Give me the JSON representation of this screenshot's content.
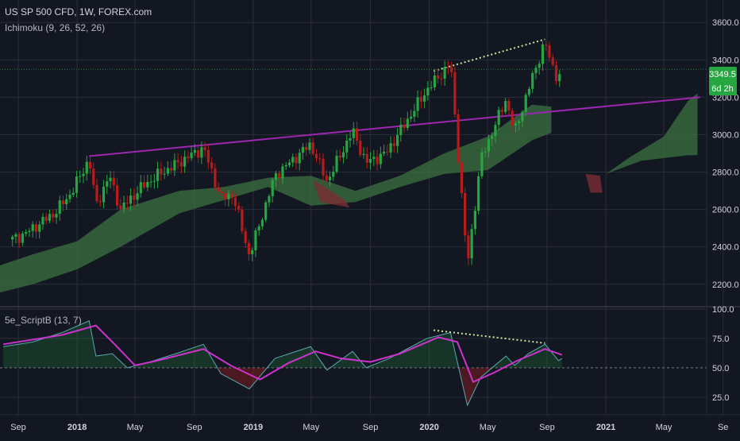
{
  "header": {
    "symbol_title": "US SP 500 CFD, 1W, FOREX.com",
    "indicator_label": "Ichimoku (9, 26, 52, 26)"
  },
  "price_badge": {
    "value": "3349.5",
    "countdown": "6d 2h"
  },
  "oscillator": {
    "label": "5e_ScriptB (13, 7)"
  },
  "colors": {
    "background": "#131722",
    "grid": "#2a2e39",
    "up": "#26a641",
    "down": "#b71c1c",
    "cloud_bull": "#3a6b3f",
    "cloud_bear": "#7a2c35",
    "trendline": "#9c27b0",
    "oscillator_line": "#5aa8b0",
    "signal_line": "#cc33cc",
    "divergence": "#c8e6a0",
    "badge_green": "#26a641"
  },
  "x_axis": {
    "ticks": [
      {
        "label": "Sep",
        "date": "2017-09-01"
      },
      {
        "label": "2018",
        "date": "2018-01-01"
      },
      {
        "label": "May",
        "date": "2018-05-01"
      },
      {
        "label": "Sep",
        "date": "2018-09-01"
      },
      {
        "label": "2019",
        "date": "2019-01-01"
      },
      {
        "label": "May",
        "date": "2019-05-01"
      },
      {
        "label": "Sep",
        "date": "2019-09-01"
      },
      {
        "label": "2020",
        "date": "2020-01-01"
      },
      {
        "label": "May",
        "date": "2020-05-01"
      },
      {
        "label": "Sep",
        "date": "2020-09-01"
      },
      {
        "label": "2021",
        "date": "2021-01-01"
      },
      {
        "label": "May",
        "date": "2021-05-01"
      },
      {
        "label": "Se",
        "date": "2021-09-01"
      }
    ]
  },
  "chart_data": [
    {
      "type": "candlestick",
      "title": "US SP 500 CFD, 1W, FOREX.com",
      "ylim": [
        2080,
        3720
      ],
      "y_ticks": [
        2200,
        2400,
        2600,
        2800,
        3000,
        3200,
        3400,
        3600
      ],
      "last_price": 3349.5,
      "price_path": [
        {
          "date": "2017-08-20",
          "price": 2440
        },
        {
          "date": "2017-09-15",
          "price": 2470
        },
        {
          "date": "2017-11-15",
          "price": 2580
        },
        {
          "date": "2017-12-20",
          "price": 2690
        },
        {
          "date": "2018-01-26",
          "price": 2870
        },
        {
          "date": "2018-02-09",
          "price": 2620
        },
        {
          "date": "2018-03-09",
          "price": 2780
        },
        {
          "date": "2018-04-01",
          "price": 2600
        },
        {
          "date": "2018-05-15",
          "price": 2720
        },
        {
          "date": "2018-06-15",
          "price": 2780
        },
        {
          "date": "2018-09-20",
          "price": 2930
        },
        {
          "date": "2018-10-26",
          "price": 2660
        },
        {
          "date": "2018-11-20",
          "price": 2680
        },
        {
          "date": "2018-12-24",
          "price": 2350
        },
        {
          "date": "2019-02-15",
          "price": 2780
        },
        {
          "date": "2019-04-30",
          "price": 2950
        },
        {
          "date": "2019-06-03",
          "price": 2750
        },
        {
          "date": "2019-07-26",
          "price": 3020
        },
        {
          "date": "2019-08-23",
          "price": 2850
        },
        {
          "date": "2019-10-03",
          "price": 2900
        },
        {
          "date": "2019-12-27",
          "price": 3240
        },
        {
          "date": "2020-02-14",
          "price": 3380
        },
        {
          "date": "2020-03-20",
          "price": 2300
        },
        {
          "date": "2020-04-17",
          "price": 2870
        },
        {
          "date": "2020-06-08",
          "price": 3190
        },
        {
          "date": "2020-06-26",
          "price": 3010
        },
        {
          "date": "2020-07-24",
          "price": 3240
        },
        {
          "date": "2020-08-28",
          "price": 3500
        },
        {
          "date": "2020-09-04",
          "price": 3420
        },
        {
          "date": "2020-09-25",
          "price": 3290
        },
        {
          "date": "2020-10-02",
          "price": 3349.5
        }
      ],
      "trendline": {
        "from": {
          "date": "2018-01-26",
          "price": 2885
        },
        "to": {
          "date": "2021-07-15",
          "price": 3200
        }
      },
      "divergence_line": {
        "from": {
          "date": "2020-01-10",
          "price": 3340
        },
        "to": {
          "date": "2020-08-28",
          "price": 3510
        }
      },
      "cloud_upper": [
        {
          "date": "2017-07-01",
          "price": 2280
        },
        {
          "date": "2017-10-01",
          "price": 2360
        },
        {
          "date": "2018-01-01",
          "price": 2430
        },
        {
          "date": "2018-04-01",
          "price": 2600
        },
        {
          "date": "2018-08-01",
          "price": 2700
        },
        {
          "date": "2018-11-01",
          "price": 2720
        },
        {
          "date": "2019-02-01",
          "price": 2770
        },
        {
          "date": "2019-05-01",
          "price": 2780
        },
        {
          "date": "2019-08-01",
          "price": 2700
        },
        {
          "date": "2019-11-01",
          "price": 2780
        },
        {
          "date": "2020-02-01",
          "price": 2900
        },
        {
          "date": "2020-05-01",
          "price": 2990
        },
        {
          "date": "2020-08-01",
          "price": 3160
        },
        {
          "date": "2020-09-10",
          "price": 3150
        }
      ],
      "cloud_lower": [
        {
          "date": "2017-07-01",
          "price": 2140
        },
        {
          "date": "2017-10-01",
          "price": 2200
        },
        {
          "date": "2018-01-01",
          "price": 2280
        },
        {
          "date": "2018-04-01",
          "price": 2400
        },
        {
          "date": "2018-08-01",
          "price": 2580
        },
        {
          "date": "2018-11-01",
          "price": 2650
        },
        {
          "date": "2019-02-01",
          "price": 2720
        },
        {
          "date": "2019-05-01",
          "price": 2620
        },
        {
          "date": "2019-08-01",
          "price": 2640
        },
        {
          "date": "2019-11-01",
          "price": 2720
        },
        {
          "date": "2020-02-01",
          "price": 2790
        },
        {
          "date": "2020-05-01",
          "price": 2810
        },
        {
          "date": "2020-08-01",
          "price": 2970
        },
        {
          "date": "2020-09-10",
          "price": 3010
        }
      ],
      "cloud_future_bear": [
        {
          "date": "2020-11-20",
          "price": 2790
        },
        {
          "date": "2020-12-20",
          "price": 2780
        },
        {
          "date": "2020-12-25",
          "price": 2690
        },
        {
          "date": "2020-11-30",
          "price": 2690
        }
      ],
      "cloud_future_bull": [
        {
          "date": "2021-01-01",
          "price": 2790
        },
        {
          "date": "2021-02-20",
          "price": 2880
        },
        {
          "date": "2021-05-01",
          "price": 2990
        },
        {
          "date": "2021-06-20",
          "price": 3180
        },
        {
          "date": "2021-07-10",
          "price": 3220
        },
        {
          "date": "2021-07-10",
          "price": 2890
        },
        {
          "date": "2021-06-20",
          "price": 2890
        },
        {
          "date": "2021-03-15",
          "price": 2860
        },
        {
          "date": "2021-01-01",
          "price": 2790
        }
      ]
    },
    {
      "type": "line",
      "title": "5e_ScriptB (13, 7)",
      "ylim": [
        10,
        102
      ],
      "y_ticks": [
        25.0,
        50.0,
        75.0,
        100.0
      ],
      "y_tick_labels": [
        "25.0",
        "50.0",
        "75.0",
        "100.0"
      ],
      "reference_level": 50,
      "series": [
        {
          "role": "oscillator",
          "points": [
            {
              "date": "2017-08-01",
              "v": 68
            },
            {
              "date": "2017-10-01",
              "v": 72
            },
            {
              "date": "2017-12-01",
              "v": 80
            },
            {
              "date": "2018-01-26",
              "v": 90
            },
            {
              "date": "2018-02-09",
              "v": 60
            },
            {
              "date": "2018-03-15",
              "v": 62
            },
            {
              "date": "2018-04-15",
              "v": 50
            },
            {
              "date": "2018-06-01",
              "v": 55
            },
            {
              "date": "2018-08-01",
              "v": 63
            },
            {
              "date": "2018-09-20",
              "v": 70
            },
            {
              "date": "2018-10-26",
              "v": 45
            },
            {
              "date": "2018-12-24",
              "v": 32
            },
            {
              "date": "2019-02-15",
              "v": 58
            },
            {
              "date": "2019-04-30",
              "v": 68
            },
            {
              "date": "2019-06-03",
              "v": 48
            },
            {
              "date": "2019-07-26",
              "v": 64
            },
            {
              "date": "2019-08-23",
              "v": 50
            },
            {
              "date": "2019-10-10",
              "v": 58
            },
            {
              "date": "2019-12-27",
              "v": 75
            },
            {
              "date": "2020-02-14",
              "v": 80
            },
            {
              "date": "2020-03-20",
              "v": 18
            },
            {
              "date": "2020-04-17",
              "v": 42
            },
            {
              "date": "2020-06-08",
              "v": 60
            },
            {
              "date": "2020-06-26",
              "v": 52
            },
            {
              "date": "2020-07-24",
              "v": 62
            },
            {
              "date": "2020-08-28",
              "v": 70
            },
            {
              "date": "2020-09-25",
              "v": 56
            },
            {
              "date": "2020-10-02",
              "v": 58
            }
          ]
        },
        {
          "role": "signal",
          "points": [
            {
              "date": "2017-08-01",
              "v": 70
            },
            {
              "date": "2017-12-01",
              "v": 78
            },
            {
              "date": "2018-02-09",
              "v": 86
            },
            {
              "date": "2018-03-20",
              "v": 70
            },
            {
              "date": "2018-05-01",
              "v": 52
            },
            {
              "date": "2018-06-15",
              "v": 56
            },
            {
              "date": "2018-09-20",
              "v": 66
            },
            {
              "date": "2018-11-15",
              "v": 52
            },
            {
              "date": "2019-01-15",
              "v": 40
            },
            {
              "date": "2019-03-15",
              "v": 54
            },
            {
              "date": "2019-05-10",
              "v": 64
            },
            {
              "date": "2019-07-01",
              "v": 58
            },
            {
              "date": "2019-09-01",
              "v": 55
            },
            {
              "date": "2019-11-01",
              "v": 62
            },
            {
              "date": "2020-01-20",
              "v": 76
            },
            {
              "date": "2020-02-28",
              "v": 72
            },
            {
              "date": "2020-04-01",
              "v": 38
            },
            {
              "date": "2020-05-15",
              "v": 46
            },
            {
              "date": "2020-07-01",
              "v": 56
            },
            {
              "date": "2020-08-28",
              "v": 66
            },
            {
              "date": "2020-10-02",
              "v": 61
            }
          ]
        }
      ],
      "divergence_line": {
        "from": {
          "date": "2020-01-10",
          "v": 82
        },
        "to": {
          "date": "2020-08-28",
          "v": 71
        }
      }
    }
  ]
}
